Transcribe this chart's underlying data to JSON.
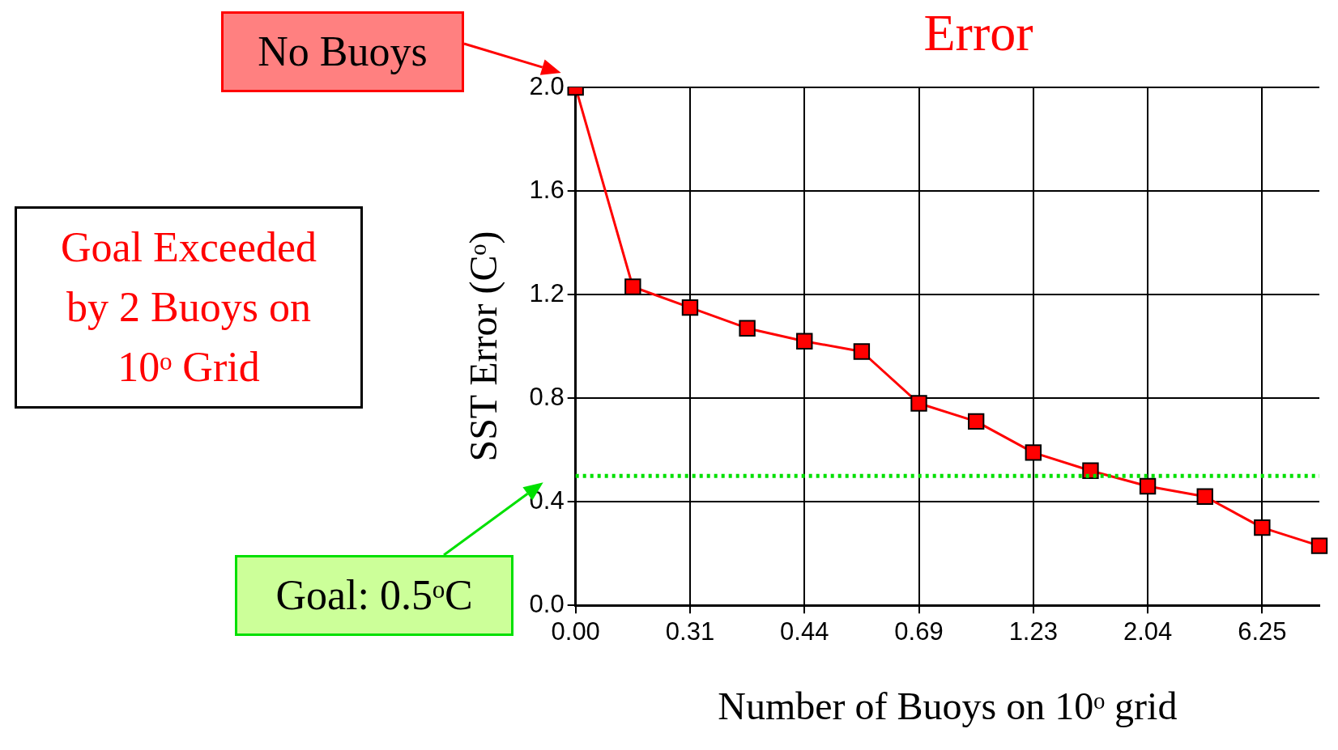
{
  "chart_data": {
    "type": "line",
    "title": "Error",
    "xlabel": "Number of Buoys on 10ᵒ grid",
    "ylabel": "SST Error (Cᵒ)",
    "categories": [
      "0.00",
      null,
      "0.31",
      null,
      "0.44",
      null,
      "0.69",
      null,
      "1.23",
      null,
      "2.04",
      null,
      "6.25",
      null
    ],
    "series": [
      {
        "color": "#ff0000",
        "values": [
          2.0,
          1.23,
          1.15,
          1.07,
          1.02,
          0.98,
          0.78,
          0.71,
          0.59,
          0.52,
          0.46,
          0.42,
          0.3,
          0.23
        ]
      }
    ],
    "ylim": [
      0,
      2
    ],
    "yticks": [
      {
        "value": 0,
        "label": "0.0"
      },
      0.4,
      0.8,
      1.2,
      1.6,
      {
        "value": 2,
        "label": "2.0"
      }
    ],
    "grid": true,
    "legend": false,
    "marker": "square",
    "line_style": "solid",
    "ref_lines": [
      {
        "axis": "y",
        "value": 0.5,
        "color": "#00e000",
        "line_style": "dotted"
      }
    ],
    "annotations": [
      "No Buoys",
      "Goal Exceeded by 2 Buoys on 10ᵒ Grid",
      "Goal: 0.5ᵒC"
    ]
  }
}
